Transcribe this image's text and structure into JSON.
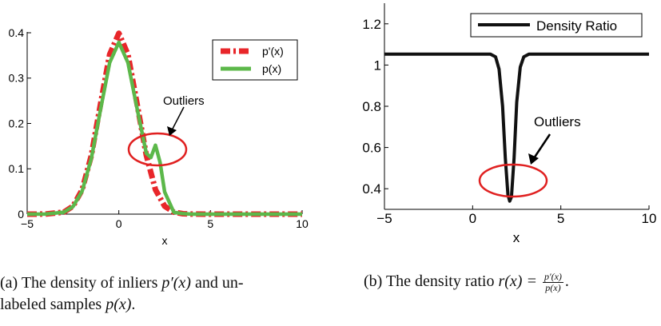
{
  "colors": {
    "p_prime": "#e8262a",
    "p": "#5cb84a",
    "ratio": "#111111",
    "ellipse": "#e02020"
  },
  "caption_a": {
    "line1_prefix": "(a)  The density of inliers ",
    "line1_math": "p′(x)",
    "line1_suffix": " and un-",
    "line2_prefix": "labeled samples ",
    "line2_math": "p(x)",
    "line2_suffix": "."
  },
  "caption_b": {
    "prefix": "(b)  The density ratio ",
    "math": "r(x) = ",
    "frac_num": "p′(x)",
    "frac_den": "p(x)",
    "suffix": "."
  },
  "chart_data": [
    {
      "type": "line",
      "xlabel": "x",
      "ylabel": "",
      "xlim": [
        -5,
        10
      ],
      "ylim": [
        0,
        0.4
      ],
      "xticks": [
        -5,
        0,
        5,
        10
      ],
      "yticks": [
        0,
        0.1,
        0.2,
        0.3,
        0.4
      ],
      "xtick_labels": [
        "−5",
        "0",
        "5",
        "10"
      ],
      "ytick_labels": [
        "0",
        "0.1",
        "0.2",
        "0.3",
        "0.4"
      ],
      "legend_placement": "top-right",
      "legend": [
        "p'(x)",
        "p(x)"
      ],
      "series": [
        {
          "name": "p'(x)",
          "style": "dash-dot",
          "x": [
            -5,
            -4,
            -3,
            -2.5,
            -2,
            -1.5,
            -1,
            -0.5,
            0,
            0.5,
            1,
            1.5,
            2,
            2.5,
            3,
            3.5,
            4,
            5,
            10
          ],
          "y": [
            0,
            0.0001,
            0.0044,
            0.0175,
            0.054,
            0.1295,
            0.242,
            0.352,
            0.399,
            0.352,
            0.242,
            0.1295,
            0.054,
            0.0175,
            0.0044,
            0.0009,
            0.0001,
            0,
            0
          ]
        },
        {
          "name": "p(x)",
          "style": "solid",
          "x": [
            -5,
            -4,
            -3,
            -2.5,
            -2,
            -1.5,
            -1,
            -0.5,
            0,
            0.5,
            1,
            1.5,
            1.75,
            2,
            2.25,
            2.5,
            3,
            3.5,
            4,
            5,
            10
          ],
          "y": [
            0,
            0.0001,
            0.0042,
            0.0166,
            0.051,
            0.123,
            0.23,
            0.334,
            0.379,
            0.334,
            0.232,
            0.134,
            0.125,
            0.152,
            0.114,
            0.049,
            0.004,
            0.001,
            0,
            0,
            0
          ]
        }
      ],
      "annotation": {
        "text": "Outliers",
        "target_x": 2,
        "target_y": 0.15
      }
    },
    {
      "type": "line",
      "xlabel": "x",
      "ylabel": "",
      "xlim": [
        -5,
        10
      ],
      "ylim": [
        0.3,
        1.3
      ],
      "xticks": [
        -5,
        0,
        5,
        10
      ],
      "yticks": [
        0.4,
        0.6,
        0.8,
        1,
        1.2
      ],
      "xtick_labels": [
        "−5",
        "0",
        "5",
        "10"
      ],
      "ytick_labels": [
        "0.4",
        "0.6",
        "0.8",
        "1",
        "1.2"
      ],
      "legend_placement": "top-right",
      "legend": [
        "Density Ratio"
      ],
      "series": [
        {
          "name": "Density Ratio",
          "style": "solid",
          "x": [
            -5,
            1,
            1.3,
            1.5,
            1.7,
            1.85,
            2,
            2.1,
            2.2,
            2.35,
            2.5,
            2.7,
            2.9,
            3.2,
            10
          ],
          "y": [
            1.053,
            1.053,
            1.04,
            0.98,
            0.8,
            0.55,
            0.37,
            0.34,
            0.36,
            0.55,
            0.82,
            0.99,
            1.04,
            1.053,
            1.053
          ]
        }
      ],
      "annotation": {
        "text": "Outliers",
        "target_x": 2.1,
        "target_y": 0.4
      }
    }
  ]
}
